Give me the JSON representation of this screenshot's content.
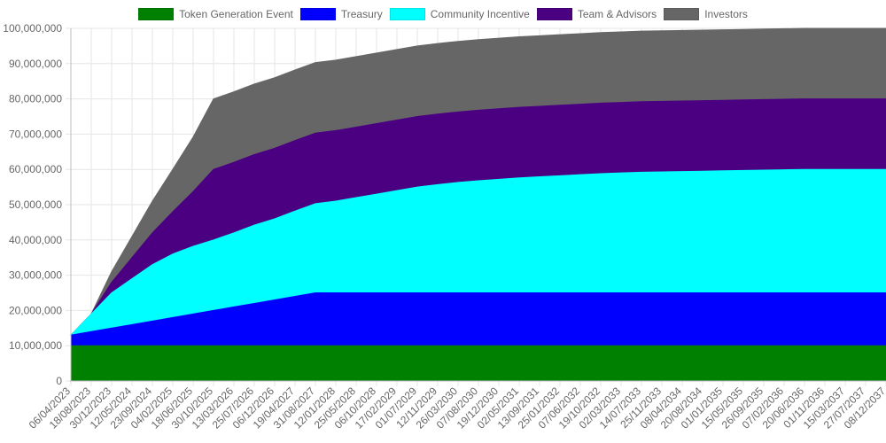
{
  "chart_data": {
    "type": "area",
    "stacked": true,
    "legend_position": "top-center",
    "grid": true,
    "ylim": [
      0,
      100000000
    ],
    "y_ticks": [
      "0",
      "10,000,000",
      "20,000,000",
      "30,000,000",
      "40,000,000",
      "50,000,000",
      "60,000,000",
      "70,000,000",
      "80,000,000",
      "90,000,000",
      "100,000,000"
    ],
    "x_ticks": [
      "06/04/2023",
      "18/08/2023",
      "30/12/2023",
      "12/05/2024",
      "23/09/2024",
      "04/02/2025",
      "18/06/2025",
      "30/10/2025",
      "13/03/2026",
      "25/07/2026",
      "06/12/2026",
      "19/04/2027",
      "31/08/2027",
      "12/01/2028",
      "25/05/2028",
      "06/10/2028",
      "17/02/2029",
      "01/07/2029",
      "12/11/2029",
      "26/03/2030",
      "07/08/2030",
      "19/12/2030",
      "02/05/2031",
      "13/09/2031",
      "25/01/2032",
      "07/06/2032",
      "19/10/2032",
      "02/03/2033",
      "14/07/2033",
      "25/11/2033",
      "08/04/2034",
      "20/08/2034",
      "01/01/2035",
      "15/05/2035",
      "26/09/2035",
      "07/02/2036",
      "20/06/2036",
      "01/11/2036",
      "15/03/2037",
      "27/07/2037",
      "08/12/2037"
    ],
    "series": [
      {
        "name": "Token Generation Event",
        "color": "#008000",
        "values": [
          10000000,
          10000000,
          10000000,
          10000000,
          10000000,
          10000000,
          10000000,
          10000000,
          10000000,
          10000000,
          10000000,
          10000000,
          10000000,
          10000000,
          10000000,
          10000000,
          10000000,
          10000000,
          10000000,
          10000000,
          10000000,
          10000000,
          10000000,
          10000000,
          10000000,
          10000000,
          10000000,
          10000000,
          10000000,
          10000000,
          10000000,
          10000000,
          10000000,
          10000000,
          10000000,
          10000000,
          10000000,
          10000000,
          10000000,
          10000000,
          10000000
        ]
      },
      {
        "name": "Treasury",
        "color": "#0000ff",
        "values": [
          3000000,
          4000000,
          5000000,
          6000000,
          7000000,
          8000000,
          9000000,
          10000000,
          11000000,
          12000000,
          13000000,
          14000000,
          15000000,
          15000000,
          15000000,
          15000000,
          15000000,
          15000000,
          15000000,
          15000000,
          15000000,
          15000000,
          15000000,
          15000000,
          15000000,
          15000000,
          15000000,
          15000000,
          15000000,
          15000000,
          15000000,
          15000000,
          15000000,
          15000000,
          15000000,
          15000000,
          15000000,
          15000000,
          15000000,
          15000000,
          15000000
        ]
      },
      {
        "name": "Community Incentive",
        "color": "#00ffff",
        "values": [
          0,
          5000000,
          10000000,
          13000000,
          16000000,
          18000000,
          19200000,
          20000000,
          21000000,
          22200000,
          23000000,
          24200000,
          25300000,
          26000000,
          27000000,
          28000000,
          29000000,
          30000000,
          30700000,
          31300000,
          31800000,
          32200000,
          32600000,
          32900000,
          33200000,
          33500000,
          33800000,
          34000000,
          34200000,
          34300000,
          34400000,
          34500000,
          34600000,
          34700000,
          34800000,
          34900000,
          35000000,
          35000000,
          35000000,
          35000000,
          35000000
        ]
      },
      {
        "name": "Team & Advisors",
        "color": "#4b0082",
        "values": [
          0,
          0,
          3000000,
          6000000,
          9000000,
          12000000,
          15500000,
          20000000,
          20000000,
          20000000,
          20000000,
          20000000,
          20000000,
          20000000,
          20000000,
          20000000,
          20000000,
          20000000,
          20000000,
          20000000,
          20000000,
          20000000,
          20000000,
          20000000,
          20000000,
          20000000,
          20000000,
          20000000,
          20000000,
          20000000,
          20000000,
          20000000,
          20000000,
          20000000,
          20000000,
          20000000,
          20000000,
          20000000,
          20000000,
          20000000,
          20000000
        ]
      },
      {
        "name": "Investors",
        "color": "#666666",
        "values": [
          0,
          0,
          3000000,
          6000000,
          9000000,
          12000000,
          15500000,
          20000000,
          20000000,
          20000000,
          20000000,
          20000000,
          20000000,
          20000000,
          20000000,
          20000000,
          20000000,
          20000000,
          20000000,
          20000000,
          20000000,
          20000000,
          20000000,
          20000000,
          20000000,
          20000000,
          20000000,
          20000000,
          20000000,
          20000000,
          20000000,
          20000000,
          20000000,
          20000000,
          20000000,
          20000000,
          20000000,
          20000000,
          20000000,
          20000000,
          20000000
        ]
      }
    ]
  }
}
